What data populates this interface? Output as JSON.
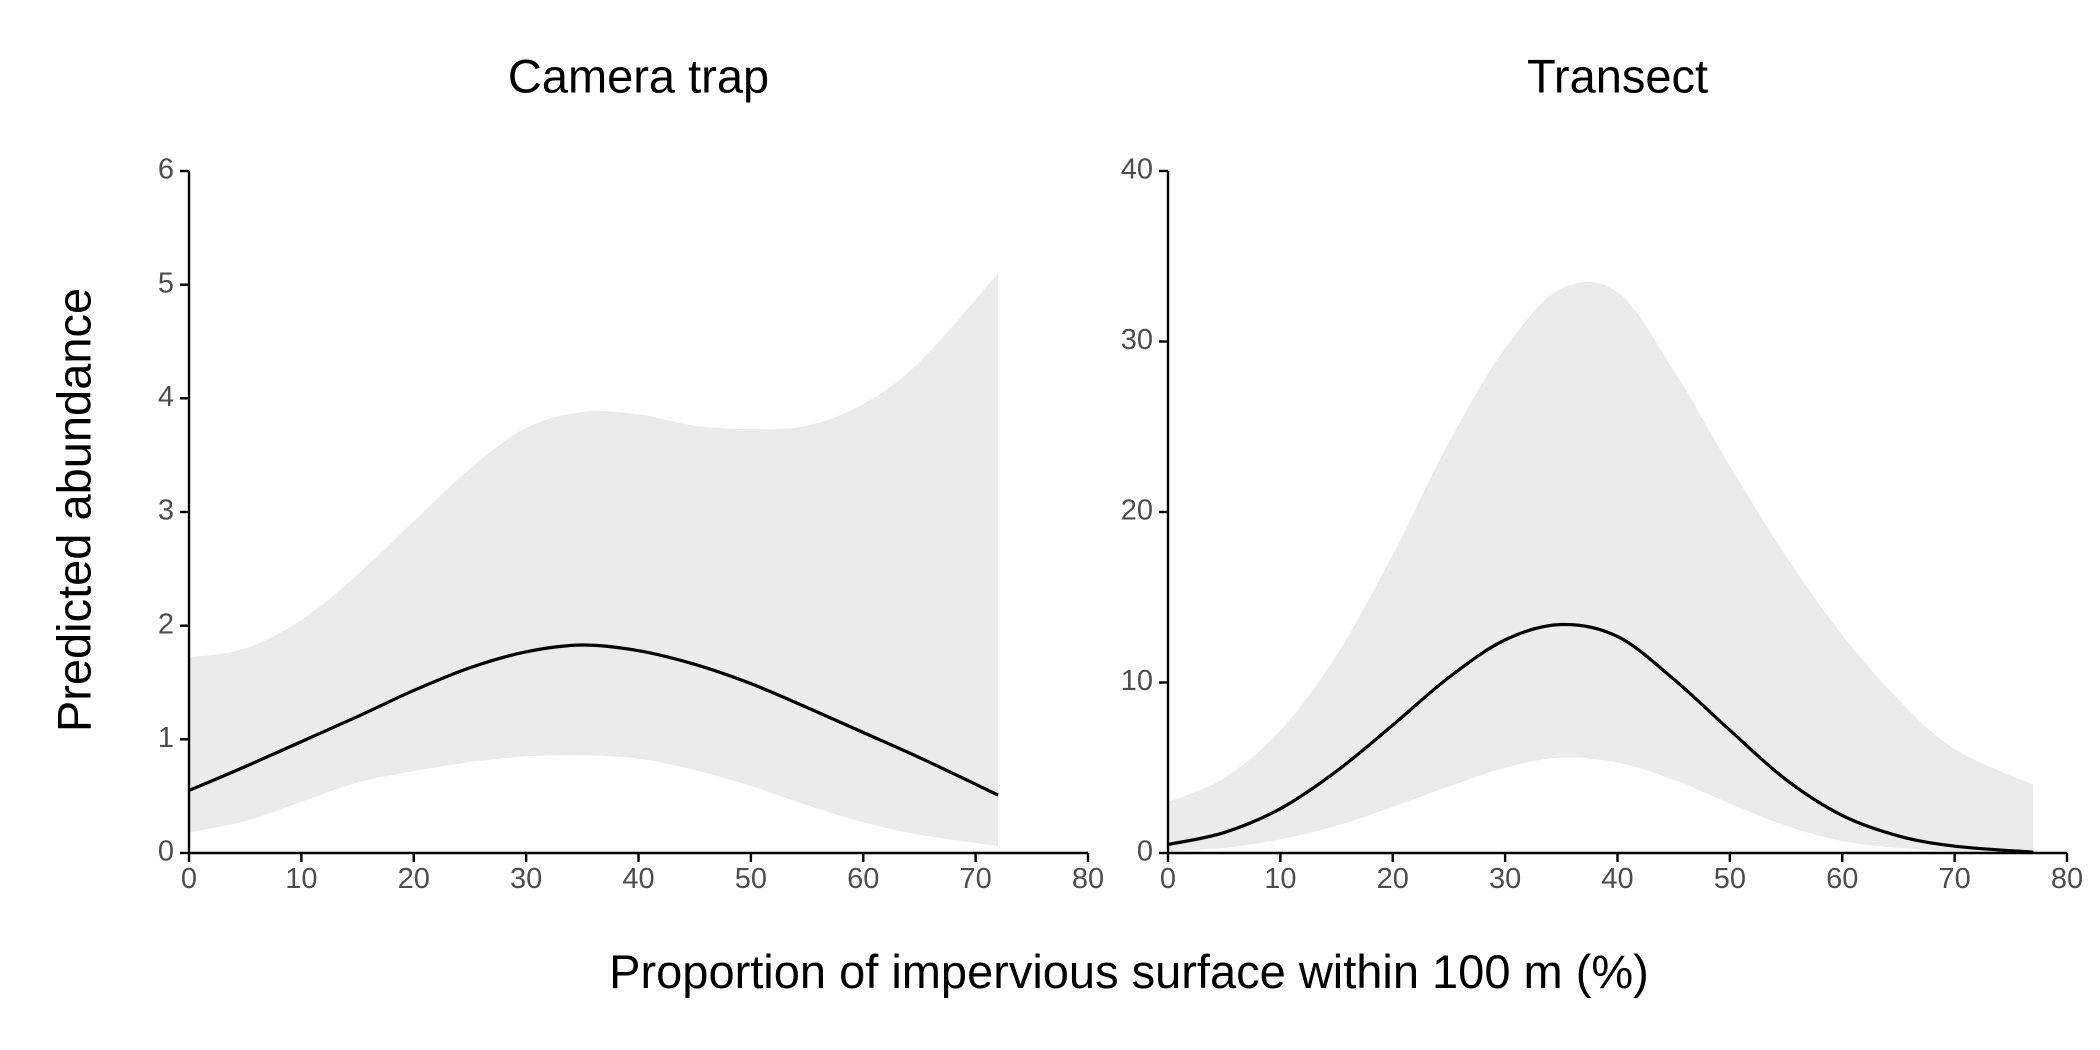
{
  "figure": {
    "ylabel": "Predicted abundance",
    "xlabel": "Proportion of impervious surface within 100 m (%)"
  },
  "colors": {
    "line": "#000000",
    "ribbon": "#ebebeb",
    "axis": "#000000",
    "tick_text": "#4d4d4d"
  },
  "chart_data": [
    {
      "type": "line",
      "title": "Camera trap",
      "xlim": [
        0,
        80
      ],
      "ylim": [
        0,
        6
      ],
      "xticks": [
        0,
        10,
        20,
        30,
        40,
        50,
        60,
        70,
        80
      ],
      "yticks": [
        0,
        1,
        2,
        3,
        4,
        5,
        6
      ],
      "grid": false,
      "series": [
        {
          "x": [
            0,
            5,
            10,
            15,
            20,
            25,
            30,
            35,
            40,
            45,
            50,
            55,
            60,
            65,
            72
          ],
          "y": [
            0.55,
            0.76,
            0.98,
            1.2,
            1.43,
            1.63,
            1.77,
            1.83,
            1.78,
            1.66,
            1.49,
            1.28,
            1.06,
            0.84,
            0.51
          ],
          "lower": [
            0.18,
            0.28,
            0.45,
            0.62,
            0.72,
            0.8,
            0.85,
            0.86,
            0.83,
            0.73,
            0.59,
            0.42,
            0.27,
            0.16,
            0.06
          ],
          "upper": [
            1.72,
            1.8,
            2.05,
            2.45,
            2.92,
            3.38,
            3.74,
            3.88,
            3.86,
            3.76,
            3.73,
            3.76,
            3.95,
            4.32,
            5.1
          ]
        }
      ]
    },
    {
      "type": "line",
      "title": "Transect",
      "xlim": [
        0,
        80
      ],
      "ylim": [
        0,
        40
      ],
      "xticks": [
        0,
        10,
        20,
        30,
        40,
        50,
        60,
        70,
        80
      ],
      "yticks": [
        0,
        10,
        20,
        30,
        40
      ],
      "grid": false,
      "series": [
        {
          "x": [
            0,
            5,
            10,
            15,
            20,
            25,
            30,
            35,
            40,
            45,
            50,
            55,
            60,
            65,
            70,
            77
          ],
          "y": [
            0.5,
            1.2,
            2.6,
            4.8,
            7.5,
            10.3,
            12.5,
            13.4,
            12.7,
            10.2,
            7.2,
            4.3,
            2.2,
            1.0,
            0.4,
            0.05
          ],
          "lower": [
            0.1,
            0.3,
            0.8,
            1.6,
            2.7,
            3.9,
            5.0,
            5.6,
            5.3,
            4.3,
            2.9,
            1.6,
            0.7,
            0.3,
            0.1,
            0.0
          ],
          "upper": [
            3.0,
            4.4,
            7.2,
            11.6,
            17.5,
            24.1,
            29.6,
            33.1,
            32.9,
            28.3,
            22.7,
            17.4,
            12.8,
            9.0,
            6.1,
            4.0
          ]
        }
      ]
    }
  ]
}
